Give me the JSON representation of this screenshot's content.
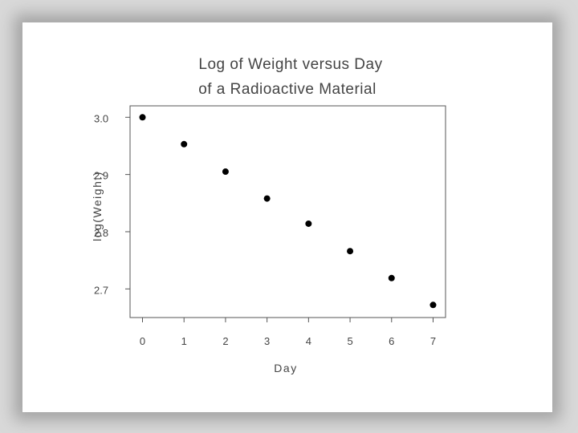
{
  "chart_data": {
    "type": "scatter",
    "title": [
      "Log of Weight versus Day",
      "of a Radioactive Material"
    ],
    "xlabel": "Day",
    "ylabel": "log(Weight)",
    "xlim": [
      -0.3,
      7.3
    ],
    "ylim": [
      2.65,
      3.02
    ],
    "xticks": [
      "0",
      "1",
      "2",
      "3",
      "4",
      "5",
      "6",
      "7"
    ],
    "yticks": [
      "2.7",
      "2.8",
      "2.9",
      "3.0"
    ],
    "grid": false,
    "x": [
      0,
      1,
      2,
      3,
      4,
      5,
      6,
      7
    ],
    "y": [
      3.0,
      2.953,
      2.905,
      2.858,
      2.814,
      2.766,
      2.719,
      2.672
    ],
    "marker_color": "#000000"
  }
}
